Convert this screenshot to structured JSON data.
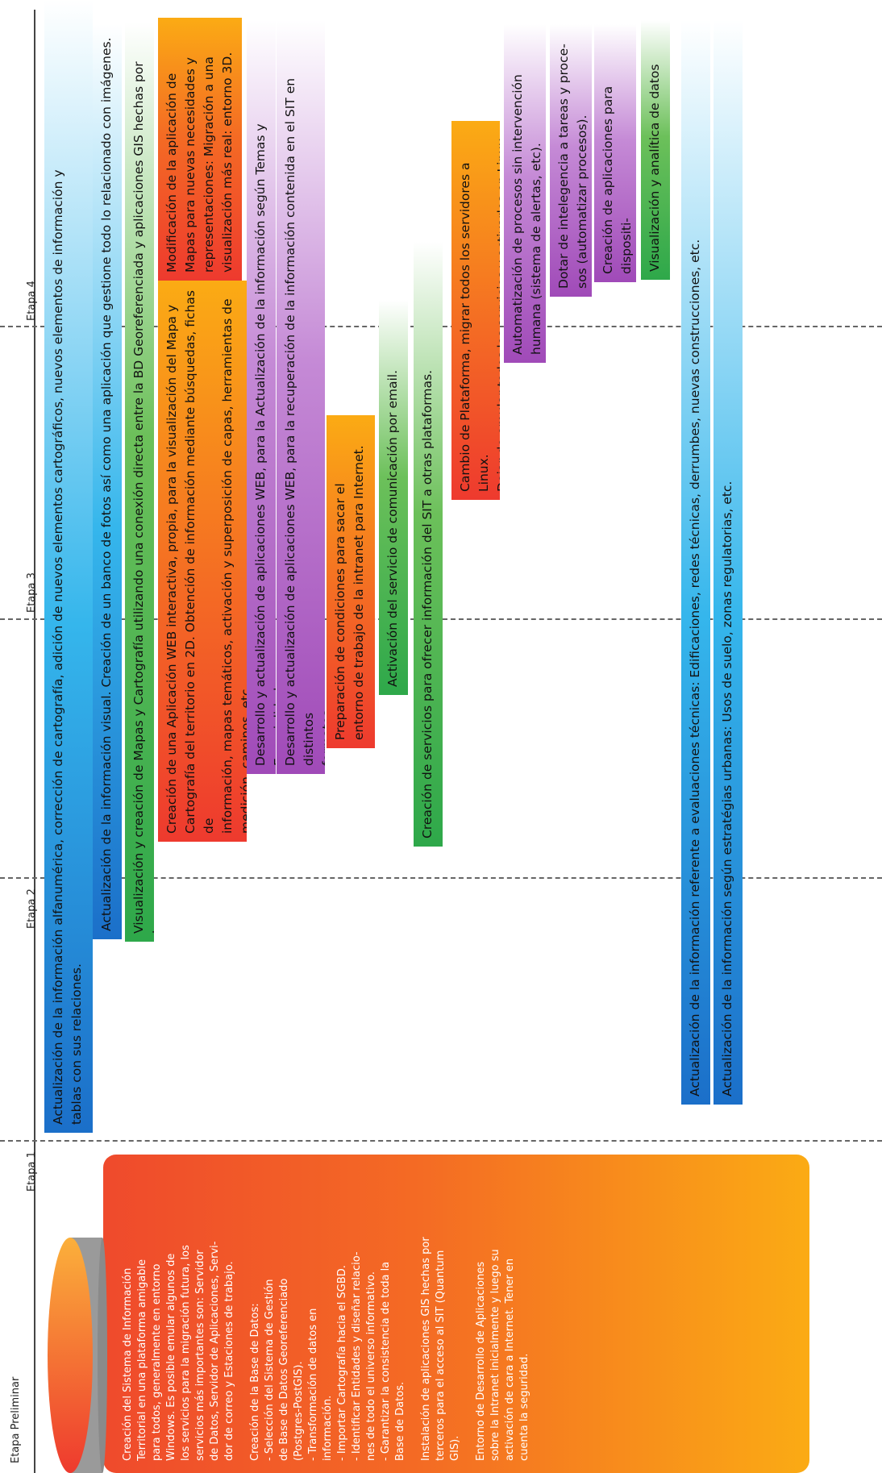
{
  "stages": [
    "Etapa Preliminar",
    "Etapa 1",
    "Etapa 2",
    "Etapa 3",
    "Etapa 4"
  ],
  "preliminary": {
    "paragraphs": [
      "Creación del Sistema de Información\nTerritorial en una plataforma amigable\npara todos, generalmente en entorno\nWindows. Es posible emular algunos de\nlos servicios para la migración futura, los\nservicios más importantes son: Servidor\nde Datos, Servidor de Aplicaciones, Servi-\ndor de correo y Estaciones de trabajo.",
      "Creación de la Base de Datos:\n- Selección del Sistema de Gestión\n  de Base de Datos Georeferenciado\n  (Postgres-PostGIS).\n- Transformación de datos en\n  información.\n- Importar Cartografía hacia el SGBD.\n- Identificar Entidades y diseñar relacio-\n  nes de todo el universo informativo.\n- Garantizar la consistencia de toda la\n  Base de Datos.",
      "Instalación de aplicaciones GIS hechas por\nterceros para el acceso al SIT (Quantum\nGIS).",
      "Entorno de Desarrollo de Aplicaciones\nsobre la Intranet inicialmente y luego su\nactivación de cara a Internet. Tener en\ncuenta la seguridad."
    ]
  },
  "bars": [
    {
      "id": "bar-1",
      "text": "Actualización de la información alfanumérica, corrección de cartografía, adición de nuevos elementos cartográficos, nuevos elementos de información y\ntablas con sus relaciones."
    },
    {
      "id": "bar-2",
      "text": "Actualización de la información visual. Creación de un banco de fotos así como una aplicación que gestione todo lo relacionado con imágenes."
    },
    {
      "id": "bar-3",
      "text": "Visualización y creación de Mapas y Cartografía utilizando una conexión directa entre la BD Georeferenciada y aplicaciones GIS hechas por terceros."
    },
    {
      "id": "bar-4",
      "text": "Creación de una Aplicación WEB interactiva, propia, para la visualización del Mapa y\nCartografía del territorio en 2D. Obtención de información mediante búsquedas, fichas de\ninformación, mapas temáticos, activación y superposición de capas, herramientas de\nmedición, caminos, etc."
    },
    {
      "id": "bar-5",
      "text": "Modificación de la aplicación de\nMapas para nuevas necesidades y\nrepresentaciones: Migración a una\nvisualización más real: entorno 3D."
    },
    {
      "id": "bar-6",
      "text": "Desarrollo y actualización de aplicaciones WEB, para la Actualización de la información según Temas y Especialidades."
    },
    {
      "id": "bar-7",
      "text": "Desarrollo y actualización de aplicaciones WEB, para la recuperación de la información contenida en el SIT en distintos\nformatos."
    },
    {
      "id": "bar-8",
      "text": "Preparación de condiciones para sacar el\nentorno de trabajo de la intranet para Internet."
    },
    {
      "id": "bar-9",
      "text": "Activación del servicio de comunicación por email."
    },
    {
      "id": "bar-10",
      "text": "Creación de servicios para ofrecer información del SIT a otras plataformas."
    },
    {
      "id": "bar-11",
      "text": "Cambio de Plataforma, migrar todos los servidores a Linux.\nDejar de emular todos los servicios y activarlos en Linux."
    },
    {
      "id": "bar-12",
      "text": "Automatización de procesos sin intervención\nhumana (sistema de alertas, etc)."
    },
    {
      "id": "bar-13",
      "text": "Dotar de intelegencia a tareas y proce-\nsos (automatizar procesos)."
    },
    {
      "id": "bar-14",
      "text": "Creación de aplicaciones para dispositi-\nvos móviles"
    },
    {
      "id": "bar-15",
      "text": "Visualización y analítica de datos"
    },
    {
      "id": "bar-16",
      "text": "Actualización de la información referente a evaluaciones técnicas: Edificaciones, redes técnicas, derrumbes, nuevas construcciones, etc."
    },
    {
      "id": "bar-17",
      "text": "Actualización de la información según estratégias urbanas: Usos de suelo, zonas regulatorias, etc."
    }
  ],
  "colors": {
    "blue": "#1b8fd6",
    "green": "#2ea84a",
    "purple": "#a852c4",
    "orange_red": "#ee3a2e",
    "orange": "#f9a51a",
    "gray": "#9a9a9a"
  }
}
